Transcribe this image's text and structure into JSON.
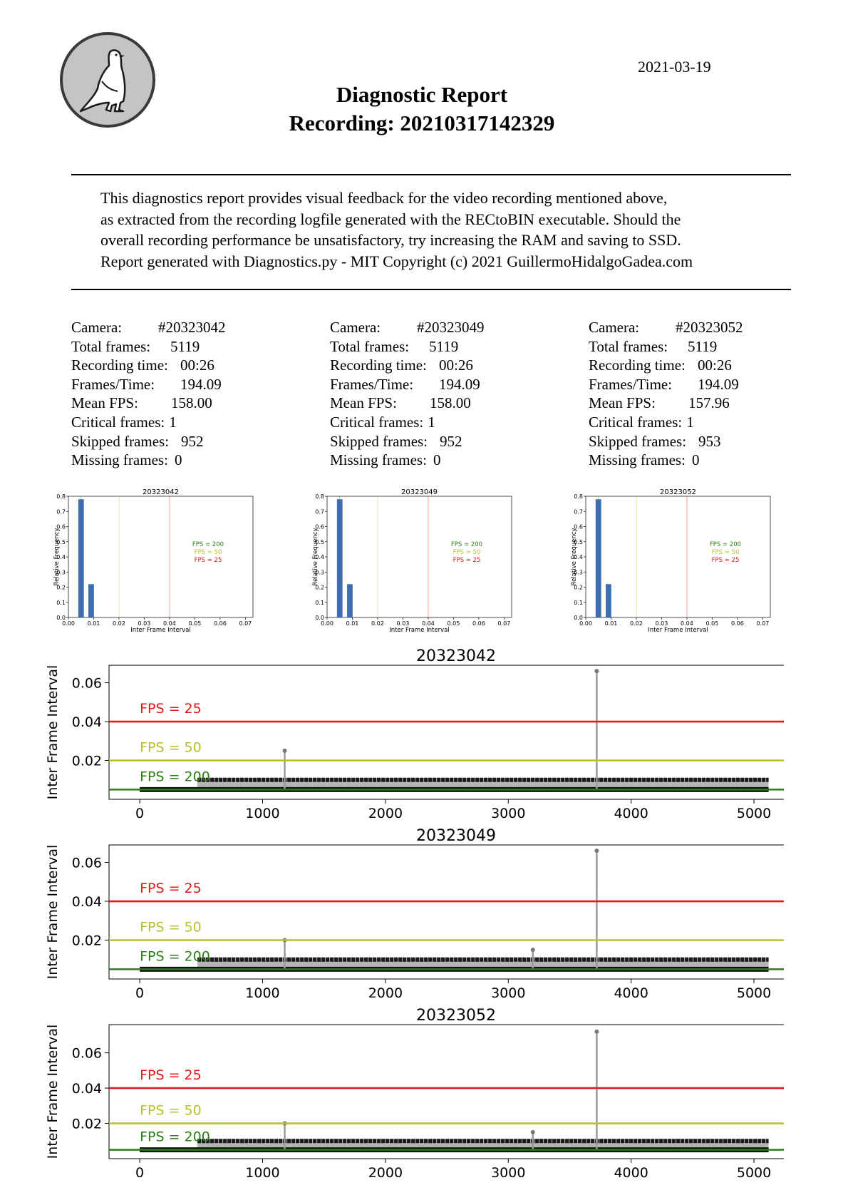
{
  "header": {
    "date": "2021-03-19",
    "title_line1": "Diagnostic Report",
    "title_line2": "Recording: 20210317142329"
  },
  "logo": {
    "icon": "pigeon-icon"
  },
  "intro": {
    "lines": [
      "This diagnostics report provides visual feedback for the video recording mentioned above,",
      "as extracted from the recording logfile generated with the RECtoBIN executable. Should the",
      "overall recording performance be unsatisfactory, try increasing the RAM and saving to SSD.",
      "Report generated with Diagnostics.py - MIT Copyright (c) 2021 GuillermoHidalgoGadea.com"
    ]
  },
  "cameras": [
    {
      "stats": [
        {
          "label": "Camera:",
          "value": "#20323042"
        },
        {
          "label": "Total frames:",
          "value": "5119"
        },
        {
          "label": "Recording time:",
          "value": "00:26"
        },
        {
          "label": "Frames/Time:",
          "value": "194.09"
        },
        {
          "label": "Mean FPS:",
          "value": "158.00"
        },
        {
          "label": "Critical frames:",
          "value": "1"
        },
        {
          "label": "Skipped frames:",
          "value": "952"
        },
        {
          "label": "Missing frames:",
          "value": "0"
        }
      ]
    },
    {
      "stats": [
        {
          "label": "Camera:",
          "value": "#20323049"
        },
        {
          "label": "Total frames:",
          "value": "5119"
        },
        {
          "label": "Recording time:",
          "value": "00:26"
        },
        {
          "label": "Frames/Time:",
          "value": "194.09"
        },
        {
          "label": "Mean FPS:",
          "value": "158.00"
        },
        {
          "label": "Critical frames:",
          "value": "1"
        },
        {
          "label": "Skipped frames:",
          "value": "952"
        },
        {
          "label": "Missing frames:",
          "value": "0"
        }
      ]
    },
    {
      "stats": [
        {
          "label": "Camera:",
          "value": "#20323052"
        },
        {
          "label": "Total frames:",
          "value": "5119"
        },
        {
          "label": "Recording time:",
          "value": "00:26"
        },
        {
          "label": "Frames/Time:",
          "value": "194.09"
        },
        {
          "label": "Mean FPS:",
          "value": "157.96"
        },
        {
          "label": "Critical frames:",
          "value": "1"
        },
        {
          "label": "Skipped frames:",
          "value": "953"
        },
        {
          "label": "Missing frames:",
          "value": "0"
        }
      ]
    }
  ],
  "chart_data": [
    {
      "type": "bar",
      "title": "20323042",
      "xlabel": "Inter Frame Interval",
      "ylabel": "Relative Frequency",
      "x": [
        0.005,
        0.009
      ],
      "values": [
        0.78,
        0.22
      ],
      "xlim": [
        0,
        0.073
      ],
      "ylim": [
        0,
        0.8
      ],
      "xticks": [
        "0.00",
        "0.01",
        "0.02",
        "0.03",
        "0.04",
        "0.05",
        "0.06",
        "0.07"
      ],
      "yticks": [
        "0.0",
        "0.1",
        "0.2",
        "0.3",
        "0.4",
        "0.5",
        "0.6",
        "0.7",
        "0.8"
      ],
      "reference_lines": [
        {
          "label": "FPS = 200",
          "x": 0.005,
          "color": "#2e7d1a"
        },
        {
          "label": "FPS = 50",
          "x": 0.02,
          "color": "#b8bf2a"
        },
        {
          "label": "FPS = 25",
          "x": 0.04,
          "color": "#e0191a"
        }
      ],
      "legend": "right"
    },
    {
      "type": "bar",
      "title": "20323049",
      "xlabel": "Inter Frame Interval",
      "ylabel": "Relative Frequency",
      "x": [
        0.005,
        0.009
      ],
      "values": [
        0.78,
        0.22
      ],
      "xlim": [
        0,
        0.073
      ],
      "ylim": [
        0,
        0.8
      ],
      "xticks": [
        "0.00",
        "0.01",
        "0.02",
        "0.03",
        "0.04",
        "0.05",
        "0.06",
        "0.07"
      ],
      "yticks": [
        "0.0",
        "0.1",
        "0.2",
        "0.3",
        "0.4",
        "0.5",
        "0.6",
        "0.7",
        "0.8"
      ],
      "reference_lines": [
        {
          "label": "FPS = 200",
          "x": 0.005,
          "color": "#2e7d1a"
        },
        {
          "label": "FPS = 50",
          "x": 0.02,
          "color": "#b8bf2a"
        },
        {
          "label": "FPS = 25",
          "x": 0.04,
          "color": "#e0191a"
        }
      ],
      "legend": "right"
    },
    {
      "type": "bar",
      "title": "20323052",
      "xlabel": "Inter Frame Interval",
      "ylabel": "Relative Frequency",
      "x": [
        0.005,
        0.009
      ],
      "values": [
        0.78,
        0.22
      ],
      "xlim": [
        0,
        0.073
      ],
      "ylim": [
        0,
        0.8
      ],
      "xticks": [
        "0.00",
        "0.01",
        "0.02",
        "0.03",
        "0.04",
        "0.05",
        "0.06",
        "0.07"
      ],
      "yticks": [
        "0.0",
        "0.1",
        "0.2",
        "0.3",
        "0.4",
        "0.5",
        "0.6",
        "0.7",
        "0.8"
      ],
      "reference_lines": [
        {
          "label": "FPS = 200",
          "x": 0.005,
          "color": "#2e7d1a"
        },
        {
          "label": "FPS = 50",
          "x": 0.02,
          "color": "#b8bf2a"
        },
        {
          "label": "FPS = 25",
          "x": 0.04,
          "color": "#e0191a"
        }
      ],
      "legend": "right"
    },
    {
      "type": "scatter",
      "title": "20323042",
      "ylabel": "Inter Frame Interval",
      "xlim": [
        -250,
        5400
      ],
      "ylim": [
        0,
        0.069
      ],
      "xticks": [
        0,
        1000,
        2000,
        3000,
        4000,
        5000
      ],
      "yticks": [
        "0.02",
        "0.04",
        "0.06"
      ],
      "baseline": {
        "y": 0.005,
        "x": [
          0,
          5119
        ]
      },
      "band": {
        "y": 0.01,
        "x": [
          470,
          5119
        ]
      },
      "spikes": [
        {
          "x": 1180,
          "y": 0.025
        },
        {
          "x": 3720,
          "y": 0.066
        }
      ],
      "reference_lines": [
        {
          "label": "FPS = 25",
          "y": 0.04,
          "color": "#e0191a"
        },
        {
          "label": "FPS = 50",
          "y": 0.02,
          "color": "#b8bf2a"
        },
        {
          "label": "FPS = 200",
          "y": 0.005,
          "color": "#2e7d1a"
        }
      ]
    },
    {
      "type": "scatter",
      "title": "20323049",
      "ylabel": "Inter Frame Interval",
      "xlim": [
        -250,
        5400
      ],
      "ylim": [
        0,
        0.069
      ],
      "xticks": [
        0,
        1000,
        2000,
        3000,
        4000,
        5000
      ],
      "yticks": [
        "0.02",
        "0.04",
        "0.06"
      ],
      "baseline": {
        "y": 0.005,
        "x": [
          0,
          5119
        ]
      },
      "band": {
        "y": 0.01,
        "x": [
          470,
          5119
        ]
      },
      "spikes": [
        {
          "x": 1180,
          "y": 0.02
        },
        {
          "x": 3200,
          "y": 0.015
        },
        {
          "x": 3720,
          "y": 0.066
        }
      ],
      "reference_lines": [
        {
          "label": "FPS = 25",
          "y": 0.04,
          "color": "#e0191a"
        },
        {
          "label": "FPS = 50",
          "y": 0.02,
          "color": "#b8bf2a"
        },
        {
          "label": "FPS = 200",
          "y": 0.005,
          "color": "#2e7d1a"
        }
      ]
    },
    {
      "type": "scatter",
      "title": "20323052",
      "ylabel": "Inter Frame Interval",
      "xlim": [
        -250,
        5400
      ],
      "ylim": [
        0,
        0.076
      ],
      "xticks": [
        0,
        1000,
        2000,
        3000,
        4000,
        5000
      ],
      "yticks": [
        "0.02",
        "0.04",
        "0.06"
      ],
      "baseline": {
        "y": 0.005,
        "x": [
          0,
          5119
        ]
      },
      "band": {
        "y": 0.01,
        "x": [
          470,
          5119
        ]
      },
      "spikes": [
        {
          "x": 1180,
          "y": 0.02
        },
        {
          "x": 3200,
          "y": 0.015
        },
        {
          "x": 3720,
          "y": 0.072
        }
      ],
      "reference_lines": [
        {
          "label": "FPS = 25",
          "y": 0.04,
          "color": "#e0191a"
        },
        {
          "label": "FPS = 50",
          "y": 0.02,
          "color": "#b8bf2a"
        },
        {
          "label": "FPS = 200",
          "y": 0.005,
          "color": "#2e7d1a"
        }
      ]
    }
  ]
}
